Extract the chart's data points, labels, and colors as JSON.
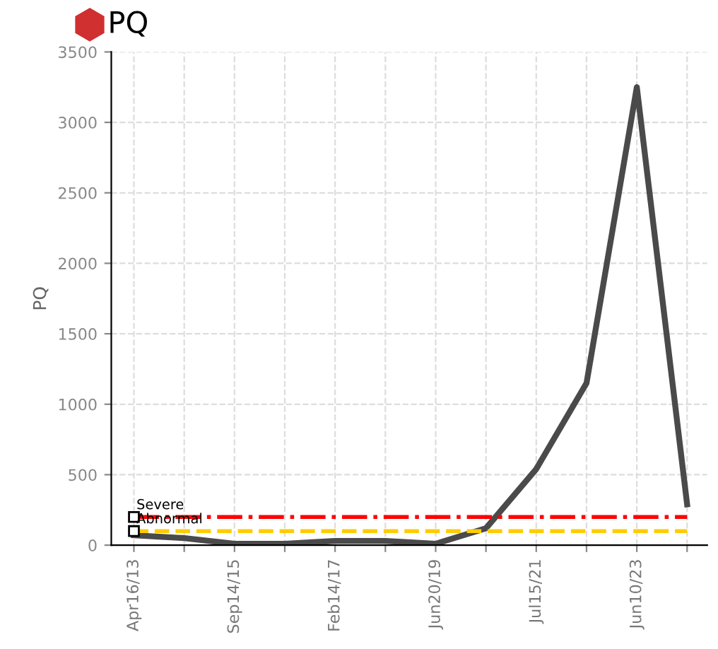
{
  "chart_data": {
    "type": "line",
    "title": "PQ",
    "ylabel": "PQ",
    "categories": [
      "Apr16/13",
      null,
      "Sep14/15",
      null,
      "Feb14/17",
      null,
      "Jun20/19",
      null,
      "Jul15/21",
      null,
      "Jun10/23",
      null
    ],
    "series": [
      {
        "color": "#4a4a4a",
        "values": [
          70,
          50,
          10,
          10,
          30,
          30,
          10,
          120,
          540,
          1150,
          3250,
          290
        ]
      }
    ],
    "ylim": [
      0,
      3500
    ],
    "yticks": [
      0,
      500,
      1000,
      1500,
      2000,
      2500,
      3000,
      3500
    ],
    "ref_lines": [
      {
        "axis": "y",
        "value": 200,
        "label": "Severe",
        "color": "#ff0000",
        "line_style": "dashdot"
      },
      {
        "axis": "y",
        "value": 100,
        "label": "Abnormal",
        "color": "#ffcc00",
        "line_style": "dashed"
      }
    ],
    "grid": true,
    "marker": "none",
    "line_style": "solid"
  }
}
